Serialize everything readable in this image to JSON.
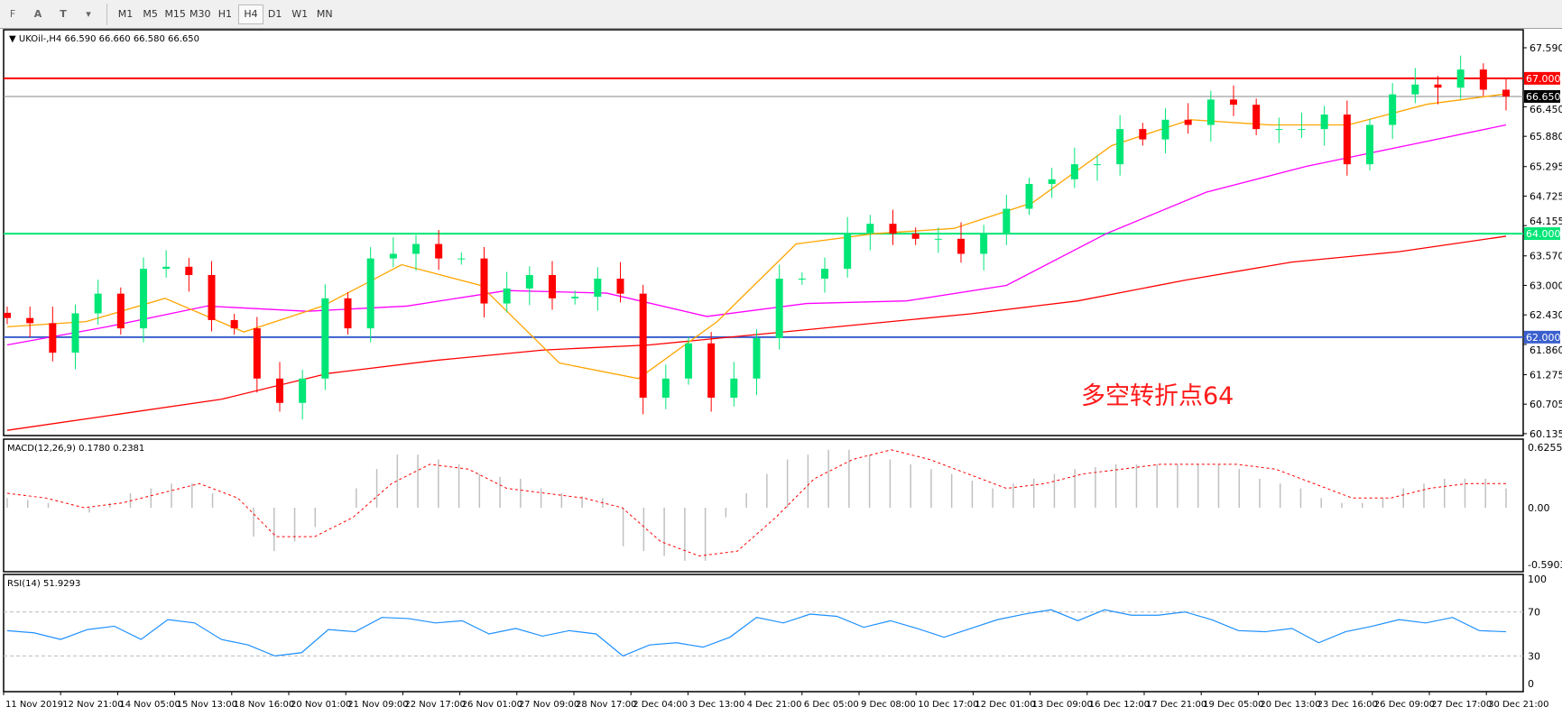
{
  "toolbar": {
    "tools": [
      {
        "icon": "grid-icon",
        "label": "F"
      },
      {
        "icon": "text-icon",
        "label": "A"
      },
      {
        "icon": "text-label-icon",
        "label": "T"
      },
      {
        "icon": "arrows-icon",
        "label": "▾"
      }
    ],
    "timeframes": [
      "M1",
      "M5",
      "M15",
      "M30",
      "H1",
      "H4",
      "D1",
      "W1",
      "MN"
    ],
    "active": "H4"
  },
  "main": {
    "title": "UKOil-,H4",
    "ohlc": "66.590 66.660 66.580 66.650",
    "price_axis": [
      "67.590",
      "66.450",
      "65.880",
      "65.295",
      "64.725",
      "64.155",
      "63.570",
      "63.000",
      "62.430",
      "61.860",
      "61.275",
      "60.705",
      "60.135"
    ],
    "levels": [
      {
        "value": 67.0,
        "label": "67.000",
        "color": "#ff0000"
      },
      {
        "value": 64.0,
        "label": "64.000",
        "color": "#00e676"
      },
      {
        "value": 62.0,
        "label": "62.000",
        "color": "#3a5fcd"
      }
    ],
    "current": {
      "value": 66.65,
      "label": "66.650"
    },
    "annotation": "多空转折点64",
    "colors": {
      "up": "#00e676",
      "down": "#ff0000",
      "ma_fast": "#ffa500",
      "ma_mid": "#ff00ff",
      "ma_slow": "#ff0000"
    }
  },
  "chart_data": [
    {
      "type": "candlestick",
      "ylim": [
        60.135,
        67.59
      ],
      "close": [
        62.37,
        62.27,
        61.7,
        62.46,
        62.84,
        62.17,
        63.32,
        63.36,
        63.2,
        62.33,
        62.17,
        61.2,
        60.73,
        61.2,
        62.75,
        62.17,
        63.52,
        63.61,
        63.8,
        63.52,
        63.52,
        62.65,
        62.94,
        63.2,
        62.75,
        62.78,
        63.13,
        62.84,
        60.83,
        61.2,
        61.88,
        60.83,
        61.2,
        61.98,
        63.13,
        63.13,
        63.32,
        64.0,
        64.19,
        64.0,
        63.9,
        63.9,
        63.61,
        64.0,
        64.48,
        64.96,
        65.05,
        65.34,
        65.34,
        66.02,
        65.82,
        66.2,
        66.1,
        66.59,
        66.49,
        66.02,
        66.02,
        66.02,
        66.3,
        65.34,
        66.1,
        66.69,
        66.88,
        66.82,
        67.17,
        66.78,
        66.65
      ],
      "ma_fast": [
        62.2,
        62.3,
        62.75,
        62.1,
        62.6,
        63.4,
        63.0,
        61.5,
        61.2,
        62.3,
        63.8,
        64.0,
        64.1,
        64.6,
        65.7,
        66.2,
        66.1,
        66.1,
        66.5,
        66.7
      ],
      "ma_mid": [
        61.85,
        62.2,
        62.6,
        62.5,
        62.6,
        62.9,
        62.85,
        62.4,
        62.65,
        62.7,
        63.0,
        64.0,
        64.8,
        65.3,
        65.7,
        66.1
      ],
      "ma_slow": [
        60.2,
        60.5,
        60.8,
        61.3,
        61.55,
        61.75,
        61.85,
        62.05,
        62.25,
        62.45,
        62.7,
        63.1,
        63.45,
        63.65,
        63.95
      ]
    },
    {
      "type": "bar+line",
      "title": "MACD(12,26,9) 0.1780 0.2381",
      "ylim": [
        -0.5903,
        0.6255
      ],
      "ticks": [
        "0.6255",
        "0.00",
        "-0.5903"
      ],
      "histogram": [
        0.1,
        0.08,
        0.05,
        0.0,
        -0.05,
        0.05,
        0.15,
        0.2,
        0.25,
        0.25,
        0.15,
        0.0,
        -0.3,
        -0.45,
        -0.35,
        -0.2,
        0.0,
        0.2,
        0.4,
        0.55,
        0.55,
        0.5,
        0.45,
        0.35,
        0.32,
        0.3,
        0.2,
        0.15,
        0.12,
        0.1,
        -0.4,
        -0.45,
        -0.5,
        -0.55,
        -0.55,
        -0.1,
        0.15,
        0.35,
        0.5,
        0.55,
        0.6,
        0.6,
        0.55,
        0.5,
        0.45,
        0.4,
        0.35,
        0.28,
        0.2,
        0.25,
        0.3,
        0.35,
        0.4,
        0.42,
        0.45,
        0.45,
        0.45,
        0.45,
        0.45,
        0.45,
        0.4,
        0.3,
        0.25,
        0.2,
        0.1,
        0.05,
        0.05,
        0.1,
        0.2,
        0.25,
        0.3,
        0.3,
        0.3,
        0.2
      ],
      "signal": [
        0.15,
        0.1,
        0.0,
        0.05,
        0.15,
        0.25,
        0.1,
        -0.3,
        -0.3,
        -0.1,
        0.25,
        0.45,
        0.4,
        0.2,
        0.15,
        0.1,
        0.0,
        -0.35,
        -0.5,
        -0.45,
        -0.1,
        0.3,
        0.5,
        0.6,
        0.5,
        0.35,
        0.2,
        0.25,
        0.35,
        0.4,
        0.45,
        0.45,
        0.45,
        0.4,
        0.25,
        0.1,
        0.1,
        0.2,
        0.25,
        0.25
      ],
      "colors": {
        "histogram": "#c0c0c0",
        "signal": "#ff0000"
      }
    },
    {
      "type": "line",
      "title": "RSI(14) 51.9293",
      "ylim": [
        0,
        100
      ],
      "ticks": [
        "100",
        "70",
        "30",
        "0"
      ],
      "levels": [
        70,
        30
      ],
      "values": [
        53,
        51,
        45,
        54,
        57,
        45,
        63,
        60,
        45,
        40,
        30,
        33,
        54,
        52,
        65,
        64,
        60,
        62,
        50,
        55,
        48,
        53,
        50,
        30,
        40,
        42,
        38,
        47,
        65,
        60,
        68,
        66,
        56,
        62,
        55,
        47,
        55,
        63,
        68,
        72,
        62,
        72,
        67,
        67,
        70,
        63,
        53,
        52,
        55,
        42,
        52,
        57,
        63,
        60,
        65,
        53,
        52
      ],
      "color": "#1e90ff"
    }
  ],
  "time_axis": [
    "11 Nov 2019",
    "12 Nov 21:00",
    "14 Nov 05:00",
    "15 Nov 13:00",
    "18 Nov 16:00",
    "20 Nov 01:00",
    "21 Nov 09:00",
    "22 Nov 17:00",
    "26 Nov 01:00",
    "27 Nov 09:00",
    "28 Nov 17:00",
    "2 Dec 04:00",
    "3 Dec 13:00",
    "4 Dec 21:00",
    "6 Dec 05:00",
    "9 Dec 08:00",
    "10 Dec 17:00",
    "12 Dec 01:00",
    "13 Dec 09:00",
    "16 Dec 12:00",
    "17 Dec 21:00",
    "19 Dec 05:00",
    "20 Dec 13:00",
    "23 Dec 16:00",
    "26 Dec 09:00",
    "27 Dec 17:00",
    "30 Dec 21:00"
  ]
}
